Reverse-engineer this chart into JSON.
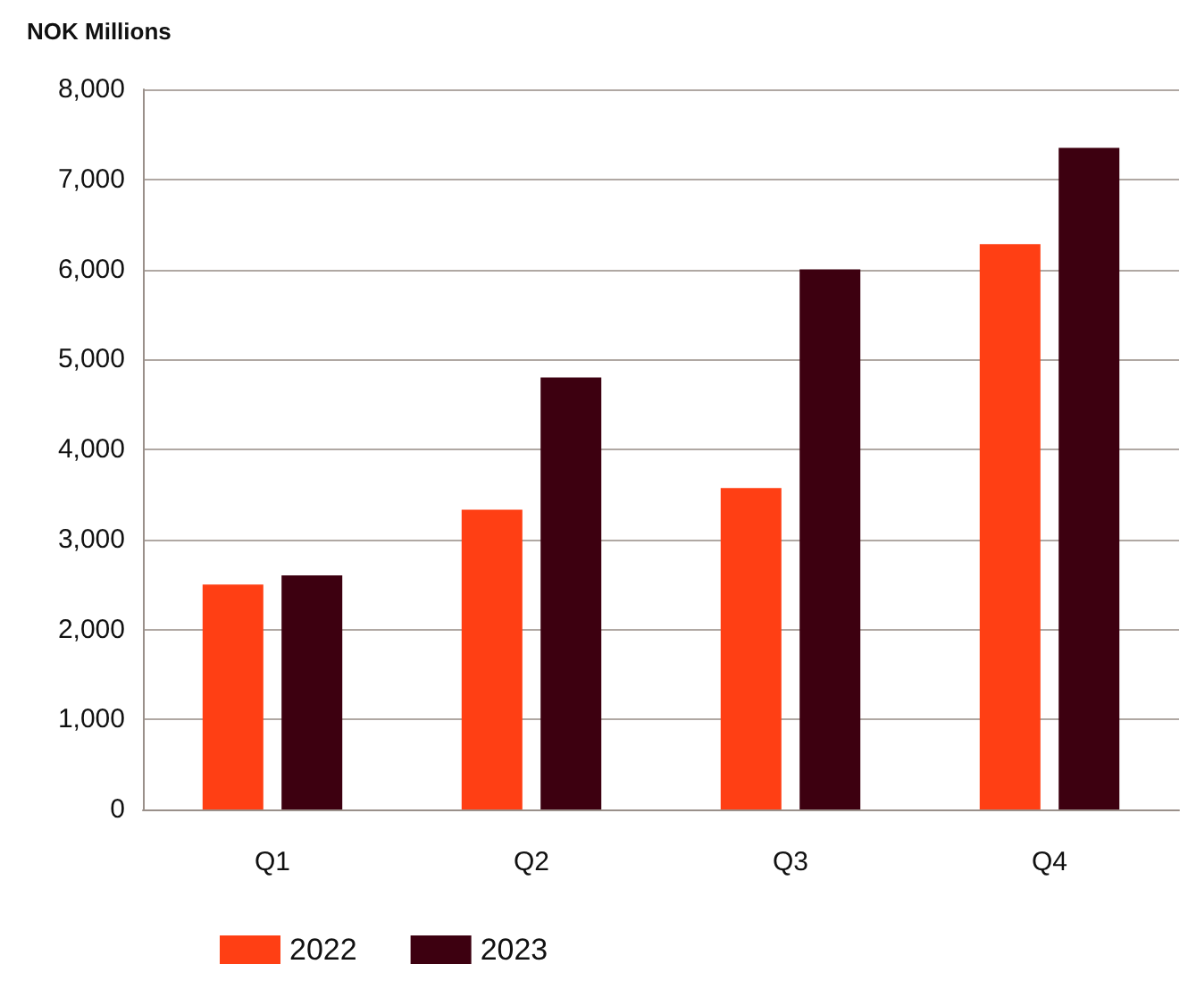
{
  "chart_data": {
    "type": "bar",
    "ylabel": "NOK Millions",
    "categories": [
      "Q1",
      "Q2",
      "Q3",
      "Q4"
    ],
    "series": [
      {
        "name": "2022",
        "color": "#ff3f14",
        "values": [
          2500,
          3330,
          3570,
          6280
        ]
      },
      {
        "name": "2023",
        "color": "#3d0010",
        "values": [
          2600,
          4800,
          6000,
          7350
        ]
      }
    ],
    "ylim": [
      0,
      8000
    ],
    "yticks": [
      0,
      {
        "value": 1000,
        "label": "1,000"
      },
      {
        "value": 2000,
        "label": "2,000"
      },
      {
        "value": 3000,
        "label": "3,000"
      },
      {
        "value": 4000,
        "label": "4,000"
      },
      {
        "value": 5000,
        "label": "5,000"
      },
      {
        "value": 6000,
        "label": "6,000"
      },
      {
        "value": 7000,
        "label": "7,000"
      },
      {
        "value": 8000,
        "label": "8,000"
      }
    ],
    "grid": "y",
    "legend": "bottom"
  }
}
